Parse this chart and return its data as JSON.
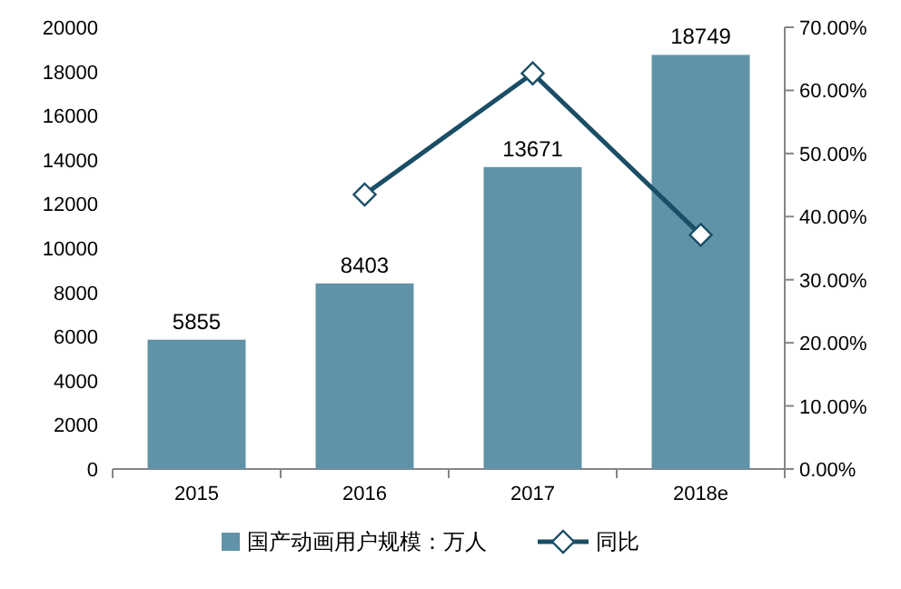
{
  "chart_data": {
    "type": "bar",
    "categories": [
      "2015",
      "2016",
      "2017",
      "2018e"
    ],
    "series": [
      {
        "name": "国产动画用户规模：万人",
        "color": "#6093a8",
        "values": [
          5855,
          8403,
          13671,
          18749
        ],
        "value_labels": [
          "5855",
          "8403",
          "13671",
          "18749"
        ]
      },
      {
        "name": "同比",
        "type": "line",
        "axis": "y2",
        "color": "#1a4e66",
        "marker": "diamond",
        "values": [
          null,
          43.5,
          62.7,
          37.1
        ]
      }
    ],
    "ylim": [
      0,
      20000
    ],
    "yticks": [
      0,
      2000,
      4000,
      6000,
      8000,
      10000,
      12000,
      14000,
      16000,
      18000,
      20000
    ],
    "y2lim": [
      0,
      70
    ],
    "y2ticks": [
      {
        "value": 0,
        "label": "0.00%"
      },
      {
        "value": 10,
        "label": "10.00%"
      },
      {
        "value": 20,
        "label": "20.00%"
      },
      {
        "value": 30,
        "label": "30.00%"
      },
      {
        "value": 40,
        "label": "40.00%"
      },
      {
        "value": 50,
        "label": "50.00%"
      },
      {
        "value": 60,
        "label": "60.00%"
      },
      {
        "value": 70,
        "label": "70.00%"
      }
    ],
    "legend": "bottom"
  }
}
